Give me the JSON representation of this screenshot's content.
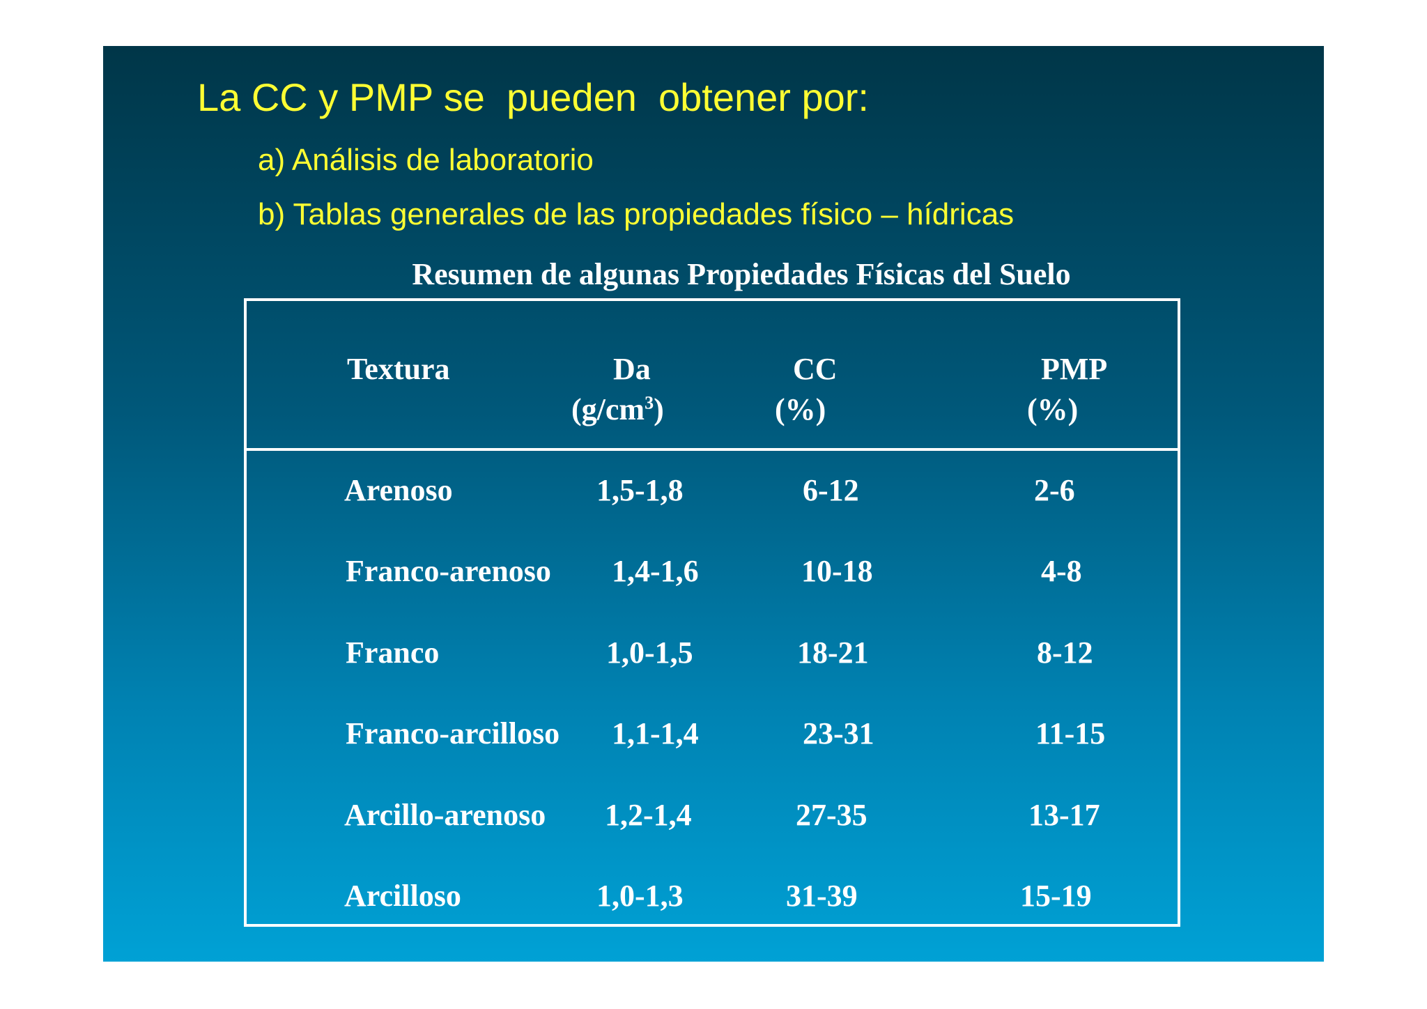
{
  "slide": {
    "title": "La CC y PMP se  pueden  obtener por:",
    "bullets": [
      "a) Análisis de laboratorio",
      "b) Tablas generales de las propiedades físico – hídricas"
    ]
  },
  "table": {
    "caption": "Resumen de algunas Propiedades Físicas del Suelo",
    "headers": {
      "textura": "Textura",
      "da": "Da",
      "da_unit_prefix": "(g/cm",
      "da_unit_sup": "3",
      "da_unit_suffix": ")",
      "cc": "CC",
      "cc_unit": "(%)",
      "pmp": "PMP",
      "pmp_unit": "(%)"
    },
    "rows": [
      {
        "textura": "Arenoso",
        "da": "1,5-1,8",
        "cc": "6-12",
        "pmp": "2-6"
      },
      {
        "textura": "Franco-arenoso",
        "da": "1,4-1,6",
        "cc": "10-18",
        "pmp": "4-8"
      },
      {
        "textura": "Franco",
        "da": "1,0-1,5",
        "cc": "18-21",
        "pmp": "8-12"
      },
      {
        "textura": "Franco-arcilloso",
        "da": "1,1-1,4",
        "cc": "23-31",
        "pmp": "11-15"
      },
      {
        "textura": "Arcillo-arenoso",
        "da": "1,2-1,4",
        "cc": "27-35",
        "pmp": "13-17"
      },
      {
        "textura": "Arcilloso",
        "da": "1,0-1,3",
        "cc": "31-39",
        "pmp": "15-19"
      }
    ]
  },
  "colors": {
    "title_text": "#ffff33",
    "table_text": "#ffffff",
    "background_top": "#003648",
    "background_bottom": "#00a1d5"
  }
}
